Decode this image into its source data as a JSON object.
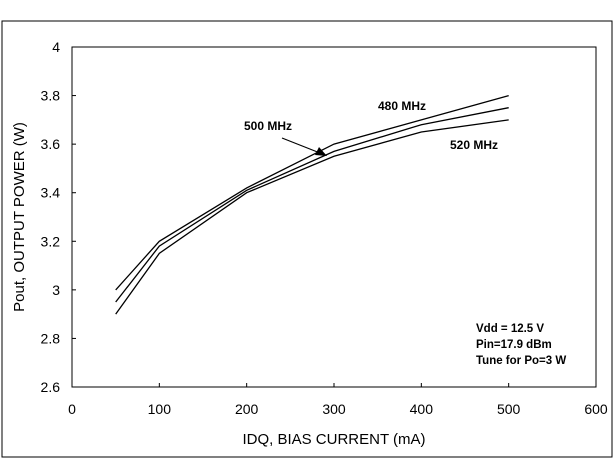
{
  "figure_title_fragment": "",
  "chart_data": {
    "type": "line",
    "title": "",
    "xlabel": "IDQ, BIAS CURRENT (mA)",
    "ylabel": "Pout, OUTPUT POWER (W)",
    "xlim": [
      0,
      600
    ],
    "ylim": [
      2.6,
      4
    ],
    "xticks": [
      0,
      100,
      200,
      300,
      400,
      500,
      600
    ],
    "yticks": [
      2.6,
      2.8,
      3,
      3.2,
      3.4,
      3.6,
      3.8,
      4
    ],
    "ytick_labels": [
      "2.6",
      "2.8",
      "3",
      "3.2",
      "3.4",
      "3.6",
      "3.8",
      "4"
    ],
    "grid": false,
    "series": [
      {
        "name": "480 MHz",
        "x": [
          50,
          100,
          200,
          300,
          400,
          500
        ],
        "y": [
          3.0,
          3.2,
          3.42,
          3.6,
          3.7,
          3.8
        ]
      },
      {
        "name": "500 MHz",
        "x": [
          50,
          100,
          200,
          300,
          400,
          500
        ],
        "y": [
          2.95,
          3.18,
          3.41,
          3.57,
          3.68,
          3.75
        ]
      },
      {
        "name": "520 MHz",
        "x": [
          50,
          100,
          200,
          300,
          400,
          500
        ],
        "y": [
          2.9,
          3.15,
          3.4,
          3.55,
          3.65,
          3.7
        ]
      }
    ],
    "annotations": [
      "Vdd = 12.5 V",
      "Pin=17.9 dBm",
      "Tune for Po=3 W"
    ]
  }
}
